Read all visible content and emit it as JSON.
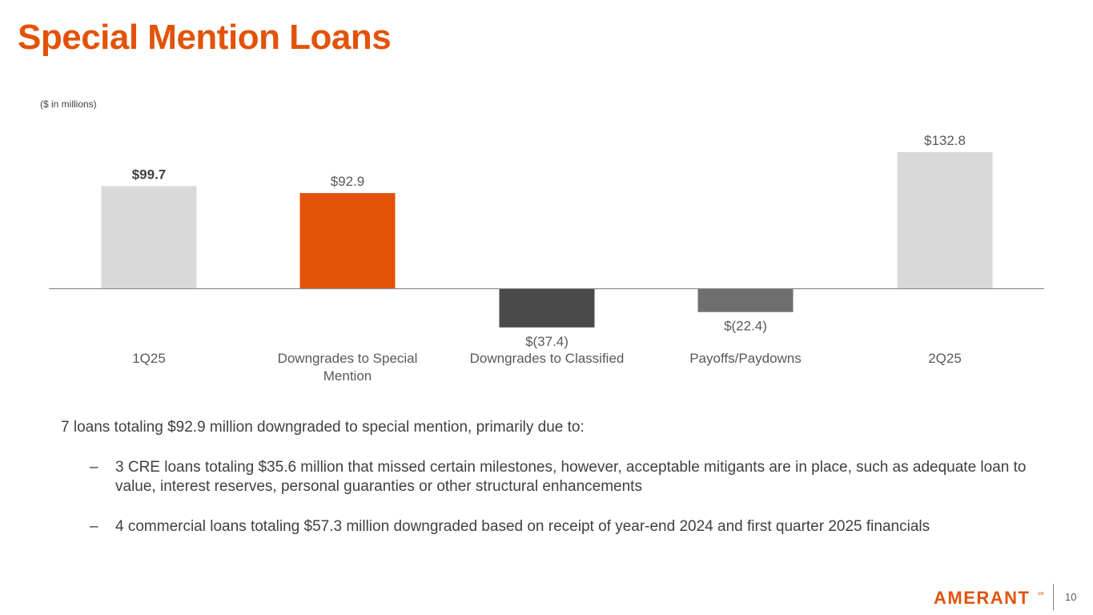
{
  "title": "Special Mention Loans",
  "units_note": "($ in millions)",
  "colors": {
    "title": "#e25309",
    "bar_total": "#d9d9d9",
    "bar_increase": "#e25309",
    "bar_classified": "#4a4a4a",
    "bar_payoffs": "#6f6f6f"
  },
  "chart_data": {
    "type": "bar",
    "subtype": "waterfall",
    "categories": [
      "1Q25",
      "Downgrades to Special Mention",
      "Downgrades to Classified",
      "Payoffs/Paydowns",
      "2Q25"
    ],
    "values": [
      99.7,
      92.9,
      -37.4,
      -22.4,
      132.8
    ],
    "data_labels": [
      "$99.7",
      "$92.9",
      "$(37.4)",
      "$(22.4)",
      "$132.8"
    ],
    "title": "",
    "xlabel": "",
    "ylabel": "",
    "ylim": [
      -40,
      140
    ],
    "grid": false,
    "legend": "none"
  },
  "commentary": {
    "lead": "7 loans totaling $92.9 million downgraded to special mention, primarily due to:",
    "bullets": [
      "3 CRE loans totaling $35.6 million that missed certain milestones, however, acceptable mitigants are in place, such as adequate loan to value, interest reserves, personal guaranties or other structural enhancements",
      "4 commercial loans totaling $57.3 million downgraded based on receipt of year-end 2024 and first quarter 2025 financials"
    ],
    "bullet_marker": "–"
  },
  "footer": {
    "logo_text": "AMERANT",
    "page_number": "10"
  }
}
